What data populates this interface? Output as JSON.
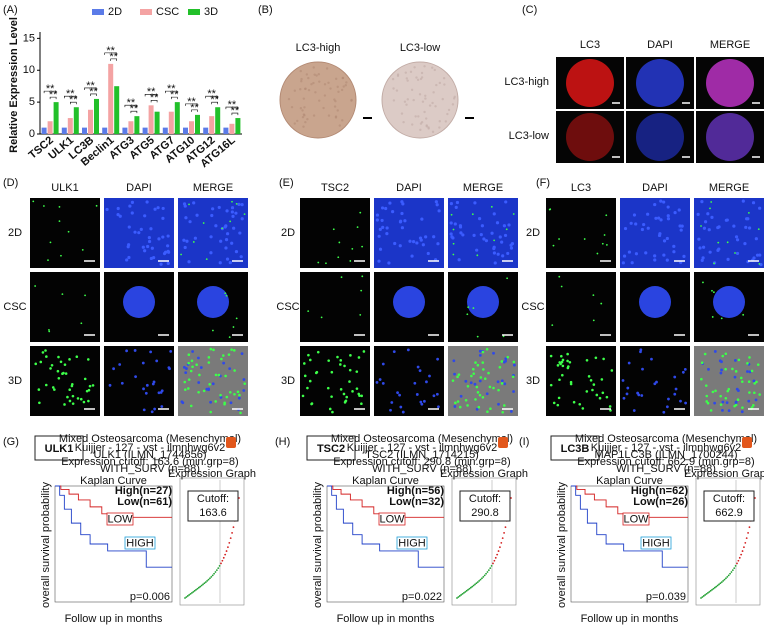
{
  "chart_data": {
    "type": "bar",
    "panel_label": "(A)",
    "y_label": "Relative Expression Level",
    "categories": [
      "TSC2",
      "ULK1",
      "LC3B",
      "Beclin1",
      "ATG3",
      "ATG5",
      "ATG7",
      "ATG10",
      "ATG12",
      "ATG16L"
    ],
    "series": [
      {
        "name": "2D",
        "color": "#5b7be8",
        "values": [
          1,
          1,
          1,
          1,
          1,
          1,
          1,
          1,
          1,
          1
        ]
      },
      {
        "name": "CSC",
        "color": "#f4a3a3",
        "values": [
          2,
          2.5,
          3.8,
          11,
          2,
          4.5,
          3.5,
          2,
          2.8,
          1.6
        ]
      },
      {
        "name": "3D",
        "color": "#22c02a",
        "values": [
          5,
          4.2,
          5.5,
          7.5,
          2.8,
          3.5,
          5,
          3,
          4.2,
          2.5
        ]
      }
    ],
    "ylim": [
      0,
      16
    ],
    "yticks": [
      0,
      5,
      10,
      15
    ],
    "sig_label": "**"
  },
  "panel_b": {
    "label": "(B)",
    "samples": [
      "LC3-high",
      "LC3-low"
    ]
  },
  "panel_c": {
    "label": "(C)",
    "columns": [
      "LC3",
      "DAPI",
      "MERGE"
    ],
    "rows": [
      "LC3-high",
      "LC3-low"
    ]
  },
  "panel_d": {
    "label": "(D)",
    "columns": [
      "ULK1",
      "DAPI",
      "MERGE"
    ],
    "rows": [
      "2D",
      "CSC",
      "3D"
    ]
  },
  "panel_e": {
    "label": "(E)",
    "columns": [
      "TSC2",
      "DAPI",
      "MERGE"
    ],
    "rows": [
      "2D",
      "CSC",
      "3D"
    ]
  },
  "panel_f": {
    "label": "(F)",
    "columns": [
      "LC3",
      "DAPI",
      "MERGE"
    ],
    "rows": [
      "2D",
      "CSC",
      "3D"
    ]
  },
  "panel_g": {
    "label": "(G)",
    "gene": "ULK1",
    "header": [
      "Mixed Osteosarcoma (Mesenchymal)",
      "Kuijjer - 127 - vst - ilmnhwg6v2",
      "ULK1 (ILMN_1744856)",
      "Expression cutoff: 163.6 (min.grp=8)",
      "WITH_SURV (n=88)"
    ],
    "plot_title": "Kaplan Curve",
    "graph_title": "Expression Graph",
    "y_label": "overall survival probability",
    "x_label": "Follow up in months",
    "high": "High(n=27)",
    "low": "Low(n=61)",
    "low_tag": "LOW",
    "high_tag": "HIGH",
    "cutoff_label": "Cutoff:",
    "cutoff": "163.6",
    "p": "p=0.006"
  },
  "panel_h": {
    "label": "(H)",
    "gene": "TSC2",
    "header": [
      "Mixed Osteosarcoma (Mesenchymal)",
      "Kuijjer - 127 - vst - ilmnhwg6v2",
      "TSC2 (ILMN_1714215)",
      "Expression cutoff: 290.8 (min.grp=8)",
      "WITH_SURV (n=88)"
    ],
    "plot_title": "Kaplan Curve",
    "graph_title": "Expression Graph",
    "y_label": "overall survival probability",
    "x_label": "Follow up in months",
    "high": "High(n=56)",
    "low": "Low(n=32)",
    "low_tag": "LOW",
    "high_tag": "HIGH",
    "cutoff_label": "Cutoff:",
    "cutoff": "290.8",
    "p": "p=0.022"
  },
  "panel_i": {
    "label": "(I)",
    "gene": "LC3B",
    "header": [
      "Mixed Osteosarcoma (Mesenchymal)",
      "Kuijjer - 127 - vst - ilmnhwg6v2",
      "MAP1LC3B (ILMN_1700244)",
      "Expression cutoff: 662.9 (min.grp=8)",
      "WITH_SURV (n=88)"
    ],
    "plot_title": "Kaplan Curve",
    "graph_title": "Expression Graph",
    "y_label": "overall survival probability",
    "x_label": "Follow up in months",
    "high": "High(n=62)",
    "low": "Low(n=26)",
    "low_tag": "LOW",
    "high_tag": "HIGH",
    "cutoff_label": "Cutoff:",
    "cutoff": "662.9",
    "p": "p=0.039"
  }
}
